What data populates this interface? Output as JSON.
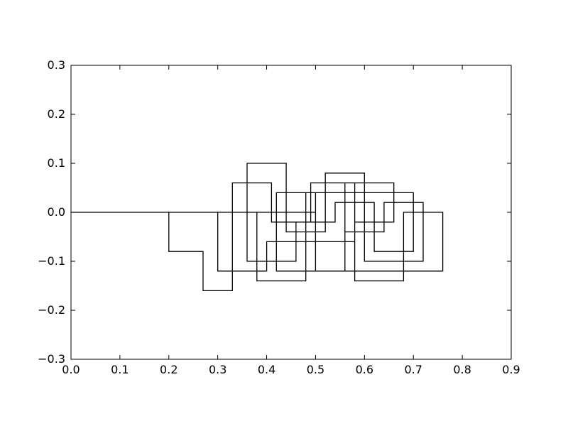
{
  "chart_data": {
    "type": "line",
    "title": "",
    "xlabel": "",
    "ylabel": "",
    "xlim": [
      0.0,
      0.9
    ],
    "ylim": [
      -0.3,
      0.3
    ],
    "grid": false,
    "legend": "none",
    "line_color": "#000000",
    "x_ticks": [
      {
        "value": 0.0,
        "label": "0.0"
      },
      {
        "value": 0.1,
        "label": "0.1"
      },
      {
        "value": 0.2,
        "label": "0.2"
      },
      {
        "value": 0.3,
        "label": "0.3"
      },
      {
        "value": 0.4,
        "label": "0.4"
      },
      {
        "value": 0.5,
        "label": "0.5"
      },
      {
        "value": 0.6,
        "label": "0.6"
      },
      {
        "value": 0.7,
        "label": "0.7"
      },
      {
        "value": 0.8,
        "label": "0.8"
      },
      {
        "value": 0.9,
        "label": "0.9"
      }
    ],
    "y_ticks": [
      {
        "value": 0.3,
        "label": "0.3"
      },
      {
        "value": 0.2,
        "label": "0.2"
      },
      {
        "value": 0.1,
        "label": "0.1"
      },
      {
        "value": 0.0,
        "label": "0.0"
      },
      {
        "value": -0.1,
        "label": "−0.1"
      },
      {
        "value": -0.2,
        "label": "−0.2"
      },
      {
        "value": -0.3,
        "label": "−0.3"
      }
    ],
    "series": [
      {
        "points": [
          [
            0.0,
            0.0
          ],
          [
            0.2,
            0.0
          ],
          [
            0.2,
            -0.08
          ],
          [
            0.27,
            -0.08
          ],
          [
            0.27,
            -0.16
          ],
          [
            0.33,
            -0.16
          ],
          [
            0.33,
            0.06
          ],
          [
            0.41,
            0.06
          ],
          [
            0.41,
            -0.02
          ],
          [
            0.49,
            -0.02
          ],
          [
            0.49,
            0.06
          ],
          [
            0.58,
            0.06
          ],
          [
            0.58,
            -0.06
          ],
          [
            0.5,
            -0.06
          ],
          [
            0.5,
            0.04
          ],
          [
            0.42,
            0.04
          ],
          [
            0.42,
            -0.12
          ],
          [
            0.56,
            -0.12
          ],
          [
            0.56,
            -0.04
          ],
          [
            0.64,
            -0.04
          ],
          [
            0.64,
            0.02
          ],
          [
            0.72,
            0.02
          ],
          [
            0.72,
            -0.1
          ],
          [
            0.6,
            -0.1
          ],
          [
            0.6,
            0.08
          ],
          [
            0.52,
            0.08
          ],
          [
            0.52,
            -0.04
          ],
          [
            0.44,
            -0.04
          ],
          [
            0.44,
            0.1
          ],
          [
            0.36,
            0.1
          ],
          [
            0.36,
            -0.1
          ],
          [
            0.46,
            -0.1
          ],
          [
            0.46,
            -0.02
          ],
          [
            0.54,
            -0.02
          ],
          [
            0.54,
            0.02
          ],
          [
            0.62,
            0.02
          ],
          [
            0.62,
            -0.08
          ],
          [
            0.7,
            -0.08
          ],
          [
            0.7,
            0.04
          ],
          [
            0.48,
            0.04
          ],
          [
            0.48,
            -0.14
          ],
          [
            0.38,
            -0.14
          ],
          [
            0.38,
            0.0
          ],
          [
            0.3,
            0.0
          ],
          [
            0.3,
            -0.12
          ],
          [
            0.4,
            -0.12
          ],
          [
            0.4,
            -0.06
          ],
          [
            0.56,
            -0.06
          ],
          [
            0.56,
            0.06
          ],
          [
            0.66,
            0.06
          ],
          [
            0.66,
            -0.02
          ],
          [
            0.58,
            -0.02
          ],
          [
            0.58,
            -0.14
          ],
          [
            0.68,
            -0.14
          ],
          [
            0.68,
            0.0
          ],
          [
            0.76,
            0.0
          ],
          [
            0.76,
            -0.12
          ],
          [
            0.5,
            -0.12
          ],
          [
            0.5,
            0.0
          ],
          [
            0.0,
            0.0
          ]
        ]
      }
    ]
  }
}
